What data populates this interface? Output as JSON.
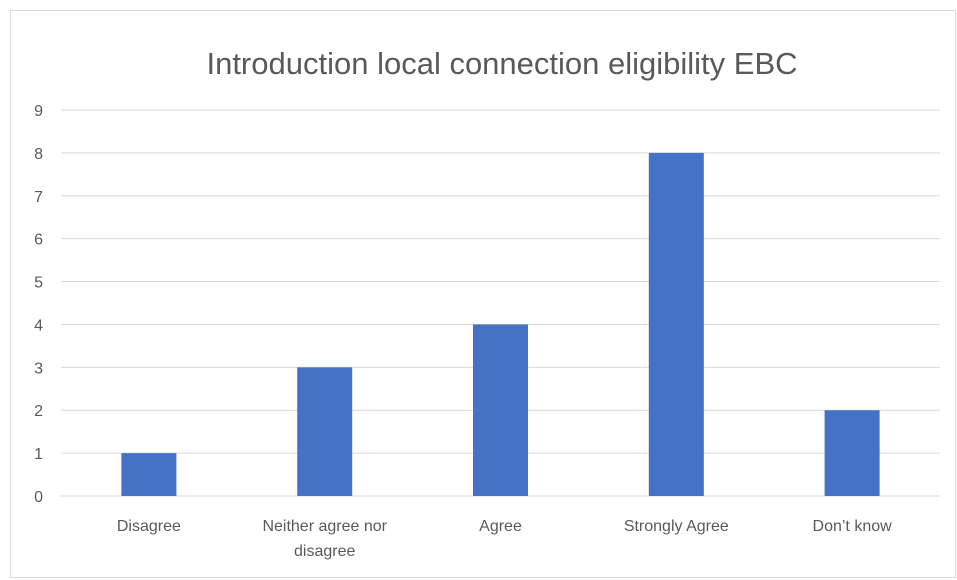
{
  "chart_data": {
    "type": "bar",
    "title": "Introduction local connection eligibility EBC",
    "categories": [
      "Disagree",
      "Neither agree nor disagree",
      "Agree",
      "Strongly Agree",
      "Don’t know"
    ],
    "category_lines": [
      [
        "Disagree"
      ],
      [
        "Neither agree nor",
        "disagree"
      ],
      [
        "Agree"
      ],
      [
        "Strongly Agree"
      ],
      [
        "Don’t know"
      ]
    ],
    "values": [
      1,
      3,
      4,
      8,
      2
    ],
    "ylim": [
      0,
      9
    ],
    "yticks": [
      0,
      1,
      2,
      3,
      4,
      5,
      6,
      7,
      8,
      9
    ],
    "xlabel": "",
    "ylabel": "",
    "grid": true,
    "legend": "none",
    "bar_color": "#4472C4",
    "grid_color": "#d9d9d9",
    "text_color": "#595959"
  }
}
